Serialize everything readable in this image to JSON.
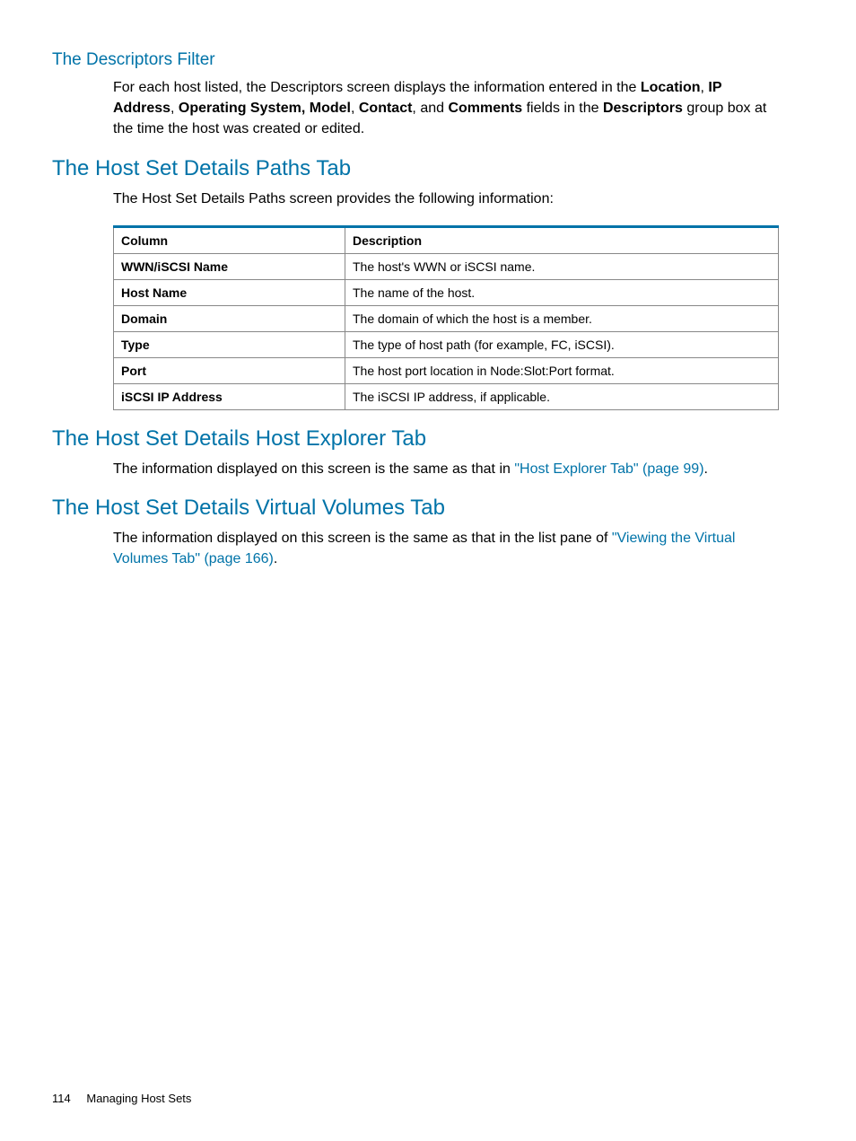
{
  "sections": {
    "descriptors": {
      "title": "The Descriptors Filter",
      "para_parts": [
        {
          "t": "For each host listed, the Descriptors screen displays the information entered in the ",
          "b": false
        },
        {
          "t": "Location",
          "b": true
        },
        {
          "t": ", ",
          "b": false
        },
        {
          "t": "IP Address",
          "b": true
        },
        {
          "t": ", ",
          "b": false
        },
        {
          "t": "Operating System, Model",
          "b": true
        },
        {
          "t": ", ",
          "b": false
        },
        {
          "t": "Contact",
          "b": true
        },
        {
          "t": ", and ",
          "b": false
        },
        {
          "t": "Comments",
          "b": true
        },
        {
          "t": " fields in the ",
          "b": false
        },
        {
          "t": "Descriptors",
          "b": true
        },
        {
          "t": " group box at the time the host was created or edited.",
          "b": false
        }
      ]
    },
    "paths": {
      "title": "The Host Set Details Paths Tab",
      "intro": "The Host Set Details Paths screen provides the following information:",
      "table": {
        "headers": [
          "Column",
          "Description"
        ],
        "rows": [
          [
            "WWN/iSCSI Name",
            "The host's WWN or iSCSI name."
          ],
          [
            "Host Name",
            "The name of the host."
          ],
          [
            "Domain",
            "The domain of which the host is a member."
          ],
          [
            "Type",
            "The type of host path (for example, FC, iSCSI)."
          ],
          [
            "Port",
            "The host port location in Node:Slot:Port format."
          ],
          [
            "iSCSI IP Address",
            "The iSCSI IP address, if applicable."
          ]
        ]
      }
    },
    "hostexplorer": {
      "title": "The Host Set Details Host Explorer Tab",
      "para_pre": "The information displayed on this screen is the same as that in ",
      "link": "\"Host Explorer Tab\" (page 99)",
      "para_post": "."
    },
    "vv": {
      "title": "The Host Set Details Virtual Volumes Tab",
      "para_pre": "The information displayed on this screen is the same as that in the list pane of ",
      "link": "\"Viewing the Virtual Volumes Tab\" (page 166)",
      "para_post": "."
    }
  },
  "footer": {
    "page": "114",
    "section": "Managing Host Sets"
  }
}
